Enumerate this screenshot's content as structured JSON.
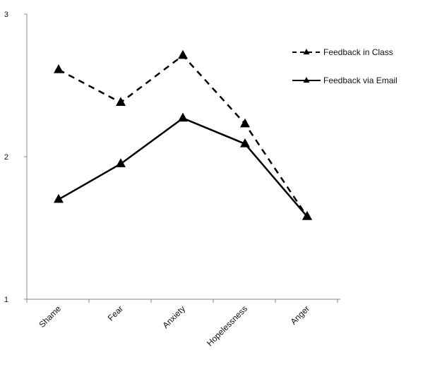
{
  "chart_data": {
    "type": "line",
    "categories": [
      "Shame",
      "Fear",
      "Anxiety",
      "Hopelessness",
      "Anger"
    ],
    "series": [
      {
        "name": "Feedback in Class",
        "values": [
          2.61,
          2.38,
          2.71,
          2.23,
          1.58
        ],
        "line_style": "dashed",
        "marker": "triangle",
        "color": "#000000"
      },
      {
        "name": "Feedback via Email",
        "values": [
          1.7,
          1.95,
          2.27,
          2.09,
          1.58
        ],
        "line_style": "solid",
        "marker": "triangle",
        "color": "#000000"
      }
    ],
    "y_ticks": [
      "1",
      "2",
      "3"
    ],
    "ylim": [
      1,
      3
    ],
    "title": "",
    "xlabel": "",
    "ylabel": "",
    "legend_position": "top-right",
    "grid": false
  }
}
